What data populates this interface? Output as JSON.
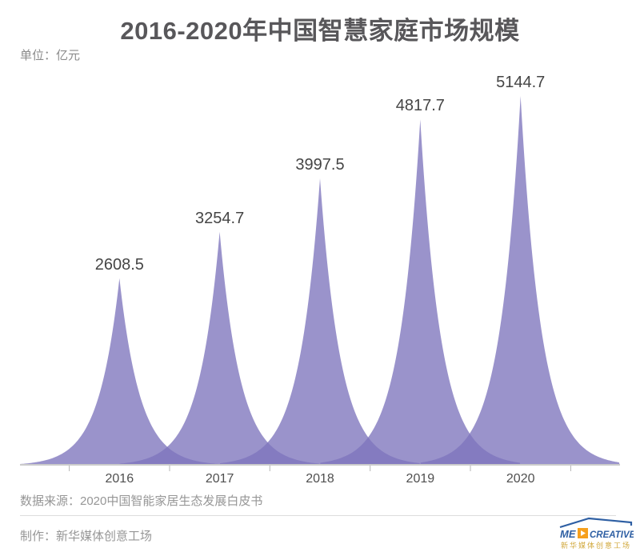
{
  "title": "2016-2020年中国智慧家庭市场规模",
  "unit_label": "单位：亿元",
  "chart_data": {
    "type": "area",
    "variant": "sharp-peak-spikes",
    "title": "2016-2020年中国智慧家庭市场规模",
    "unit": "亿元",
    "categories": [
      "2016",
      "2017",
      "2018",
      "2019",
      "2020"
    ],
    "values": [
      2608.5,
      3254.7,
      3997.5,
      4817.7,
      5144.7
    ],
    "value_labels": [
      "2608.5",
      "3254.7",
      "3997.5",
      "4817.7",
      "5144.7"
    ],
    "ylim": [
      0,
      5200
    ],
    "grid": false,
    "legend": "none",
    "fill_color": "#7D75BD",
    "fill_opacity": 0.78,
    "axis_line_color": "#CBCBCB",
    "tick_color": "#B5B5B5",
    "value_label_color": "#454545",
    "axis_label_color": "#4F4F4F"
  },
  "footer": {
    "source": "数据来源：2020中国智能家居生态发展白皮书",
    "credit": "制作：新华媒体创意工场"
  },
  "logo": {
    "en_left": "ME",
    "en_right": "CREATIVE",
    "zh": "新华媒体创意工场",
    "blue": "#2E5FA3",
    "orange": "#F6A01D",
    "yellow": "#D1A83C"
  },
  "colors": {
    "title": "#58575A",
    "unit_text": "#8B8B8B",
    "footer_text": "#969696",
    "background": "#FFFFFF"
  }
}
